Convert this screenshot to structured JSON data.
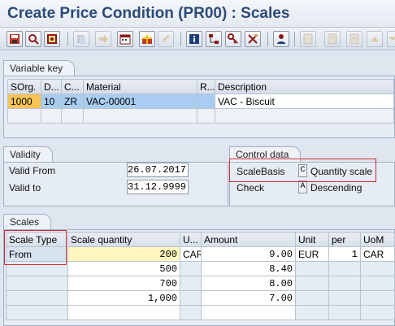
{
  "window": {
    "title": "Create Price Condition (PR00) : Scales"
  },
  "toolbar": {
    "icons": [
      "save-icon",
      "find-icon",
      "display-icon",
      "copy-icon",
      "forward-icon",
      "calendar-icon",
      "gift-icon",
      "edit-icon",
      "info-icon",
      "structure-icon",
      "key-icon",
      "tools-icon",
      "person-icon",
      "doc-icon",
      "doc2-icon",
      "doc3-icon",
      "arrow-up-icon",
      "arrow-down-icon"
    ]
  },
  "variable_key": {
    "section_label": "Variable key",
    "headers": [
      "SOrg.",
      "D...",
      "C...",
      "Material",
      "R...",
      "Description"
    ],
    "row": [
      "1000",
      "10",
      "ZR",
      "VAC-00001",
      "",
      "VAC - Biscuit"
    ]
  },
  "validity": {
    "section_label": "Validity",
    "valid_from_label": "Valid From",
    "valid_from": "26.07.2017",
    "valid_to_label": "Valid to",
    "valid_to": "31.12.9999"
  },
  "control_data": {
    "section_label": "Control data",
    "scale_basis_label": "ScaleBasis",
    "scale_basis_code": "C",
    "scale_basis_text": "Quantity scale",
    "check_label": "Check",
    "check_code": "A",
    "check_text": "Descending"
  },
  "scales": {
    "section_label": "Scales",
    "headers": [
      "Scale Type",
      "Scale quantity",
      "U...",
      "Amount",
      "Unit",
      "per",
      "UoM"
    ],
    "rows": [
      [
        "From",
        "200",
        "CAR",
        "9.00",
        "EUR",
        "1",
        "CAR"
      ],
      [
        "",
        "500",
        "",
        "8.40",
        "",
        "",
        ""
      ],
      [
        "",
        "700",
        "",
        "8.00",
        "",
        "",
        ""
      ],
      [
        "",
        "1,000",
        "",
        "7.00",
        "",
        "",
        ""
      ],
      [
        "",
        "",
        "",
        "",
        "",
        "",
        ""
      ]
    ]
  },
  "colors": {
    "selected_row": "#a9cdf0",
    "selected_cell": "#f7c353",
    "active_input": "#fff7bf",
    "highlight_box": "#d12b35"
  }
}
